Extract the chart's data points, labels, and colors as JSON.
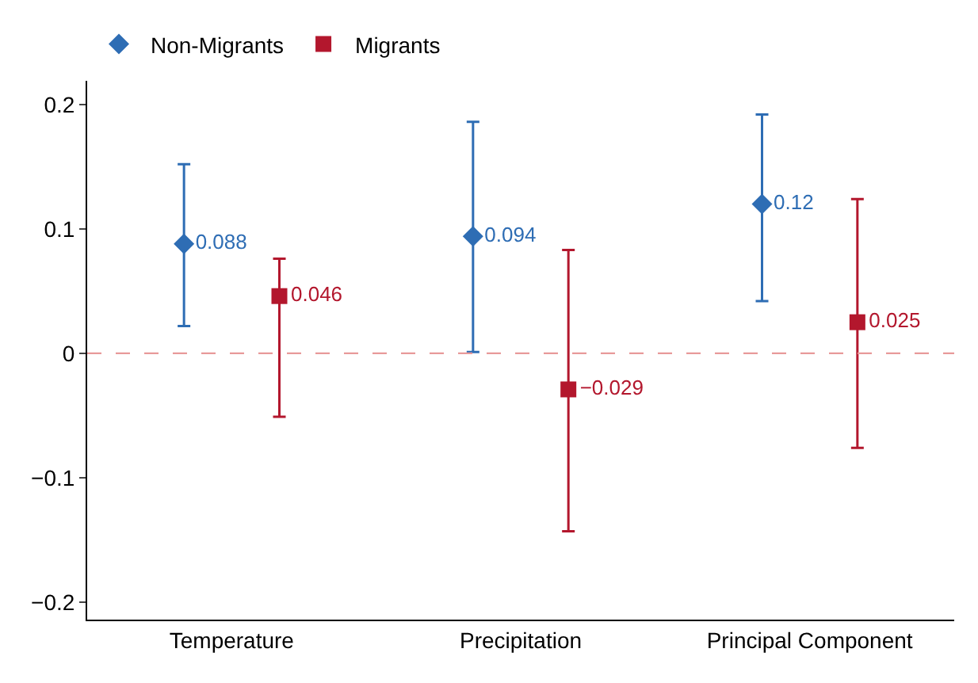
{
  "chart_data": {
    "type": "scatter",
    "categories": [
      "Temperature",
      "Precipitation",
      "Principal Component"
    ],
    "series": [
      {
        "name": "Non-Migrants",
        "color": "#2e6db4",
        "marker": "diamond",
        "values": [
          0.088,
          0.094,
          0.12
        ],
        "errors": [
          [
            0.022,
            0.152
          ],
          [
            0.001,
            0.186
          ],
          [
            0.042,
            0.192
          ]
        ],
        "value_labels": [
          "0.088",
          "0.094",
          "0.12"
        ]
      },
      {
        "name": "Migrants",
        "color": "#b3172d",
        "marker": "square",
        "values": [
          0.046,
          -0.029,
          0.025
        ],
        "errors": [
          [
            -0.051,
            0.076
          ],
          [
            -0.143,
            0.083
          ],
          [
            -0.076,
            0.124
          ]
        ],
        "value_labels": [
          "0.046",
          "−0.029",
          "0.025"
        ]
      }
    ],
    "ylim": [
      -0.214,
      0.219
    ],
    "yticks": [
      {
        "value": -0.2,
        "label": "−0.2"
      },
      {
        "value": -0.1,
        "label": "−0.1"
      },
      0,
      0.1,
      0.2
    ],
    "ref_lines": [
      {
        "axis": "y",
        "value": 0,
        "color": "#e89a9a",
        "line_style": "dashed"
      }
    ],
    "grid": false,
    "legend": "top left"
  }
}
